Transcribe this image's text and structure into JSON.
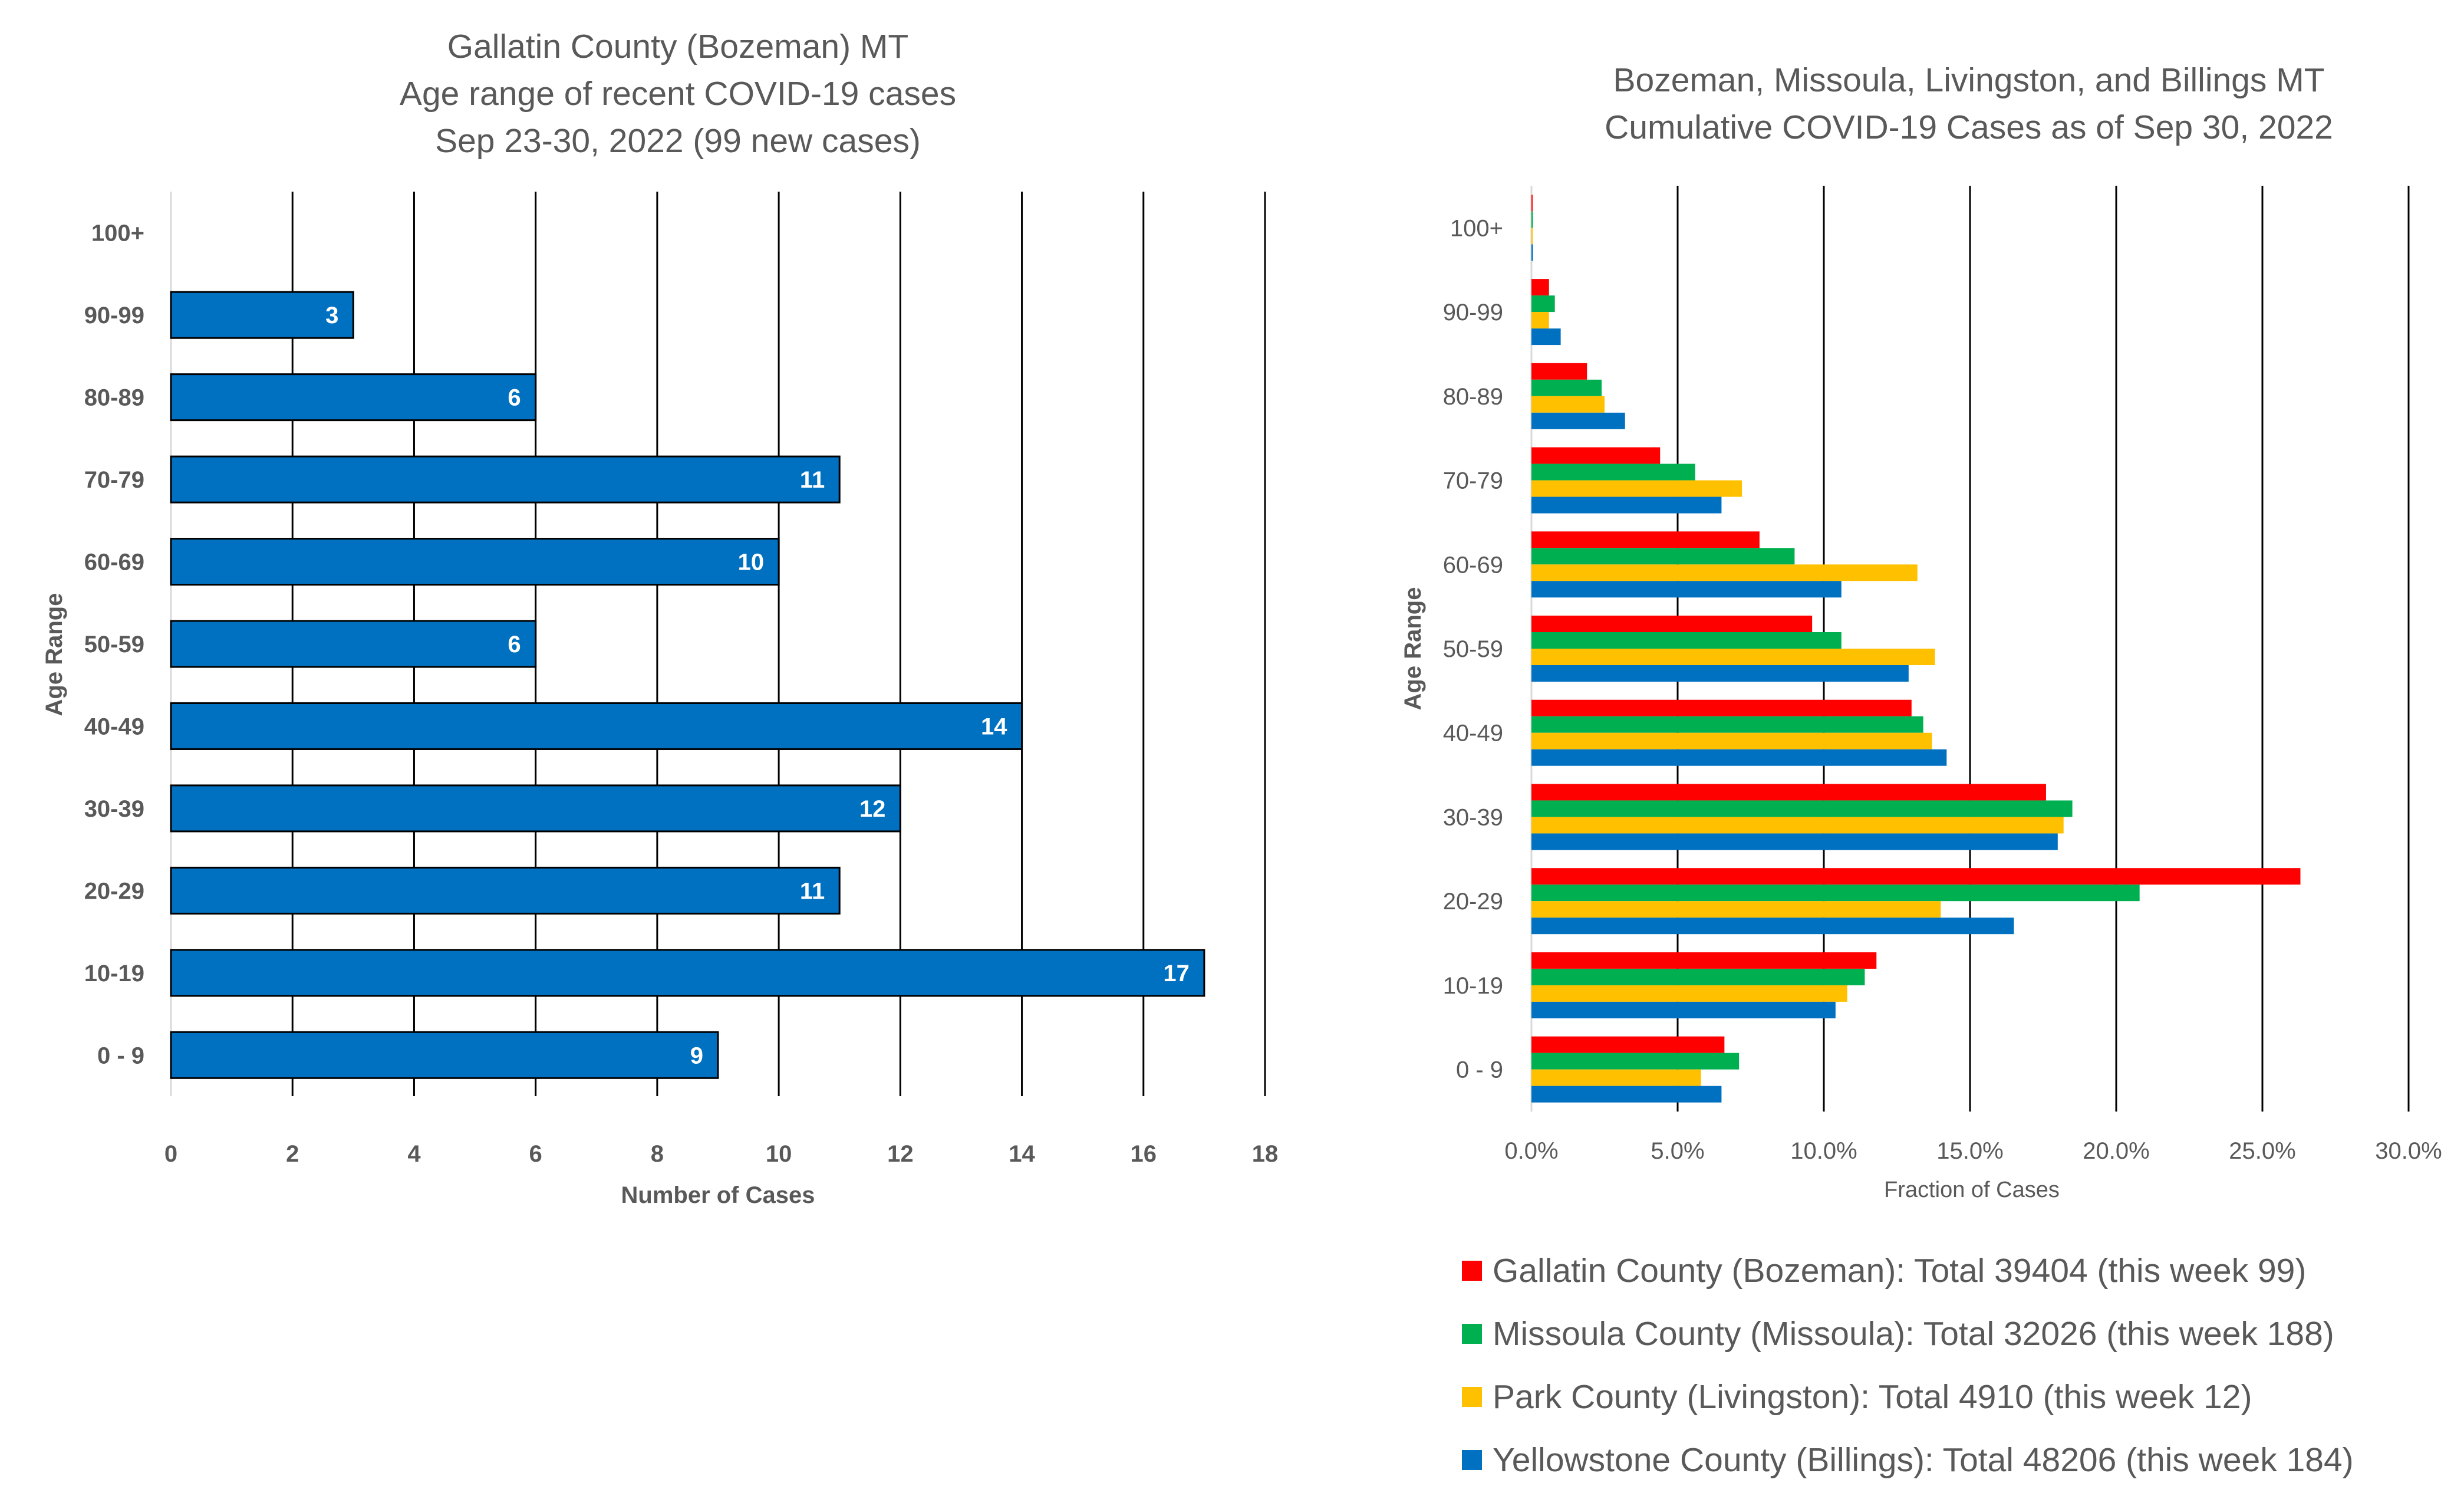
{
  "chart_data": [
    {
      "type": "bar",
      "orientation": "horizontal",
      "title": [
        "Gallatin County (Bozeman) MT",
        "Age range of recent COVID-19 cases",
        "Sep 23-30, 2022 (99 new cases)"
      ],
      "xlabel": "Number of Cases",
      "ylabel": "Age Range",
      "xlim": [
        0,
        18
      ],
      "xticks": [
        "0",
        "2",
        "4",
        "6",
        "8",
        "10",
        "12",
        "14",
        "16",
        "18"
      ],
      "grid": "vertical",
      "data_labels": true,
      "bar_color": "#0070C0",
      "categories": [
        "0 - 9",
        "10-19",
        "20-29",
        "30-39",
        "40-49",
        "50-59",
        "60-69",
        "70-79",
        "80-89",
        "90-99",
        "100+"
      ],
      "values": [
        9,
        17,
        11,
        12,
        14,
        6,
        10,
        11,
        6,
        3,
        0
      ]
    },
    {
      "type": "bar",
      "orientation": "horizontal",
      "title": [
        "Bozeman, Missoula, Livingston, and Billings MT",
        "Cumulative COVID-19 Cases as of Sep 30, 2022"
      ],
      "xlabel": "Fraction of Cases",
      "ylabel": "Age Range",
      "xlim": [
        0,
        0.3
      ],
      "xticks": [
        "0.0%",
        "5.0%",
        "10.0%",
        "15.0%",
        "20.0%",
        "25.0%",
        "30.0%"
      ],
      "grid": "vertical",
      "legend_position": "bottom",
      "categories": [
        "0 - 9",
        "10-19",
        "20-29",
        "30-39",
        "40-49",
        "50-59",
        "60-69",
        "70-79",
        "80-89",
        "90-99",
        "100+"
      ],
      "series": [
        {
          "name": "Gallatin County (Bozeman): Total 39404 (this week 99)",
          "color": "#FF0000",
          "values": [
            0.066,
            0.118,
            0.263,
            0.176,
            0.13,
            0.096,
            0.078,
            0.044,
            0.019,
            0.006,
            0.0003
          ]
        },
        {
          "name": "Missoula County (Missoula): Total 32026 (this week 188)",
          "color": "#00B050",
          "values": [
            0.071,
            0.114,
            0.208,
            0.185,
            0.134,
            0.106,
            0.09,
            0.056,
            0.024,
            0.008,
            0.0005
          ]
        },
        {
          "name": "Park County (Livingston): Total 4910 (this week 12)",
          "color": "#FFC000",
          "values": [
            0.058,
            0.108,
            0.14,
            0.182,
            0.137,
            0.138,
            0.132,
            0.072,
            0.025,
            0.006,
            0.0002
          ]
        },
        {
          "name": "Yellowstone County (Billings): Total 48206 (this week 184)",
          "color": "#0070C0",
          "values": [
            0.065,
            0.104,
            0.165,
            0.18,
            0.142,
            0.129,
            0.106,
            0.065,
            0.032,
            0.01,
            0.0005
          ]
        }
      ]
    }
  ]
}
